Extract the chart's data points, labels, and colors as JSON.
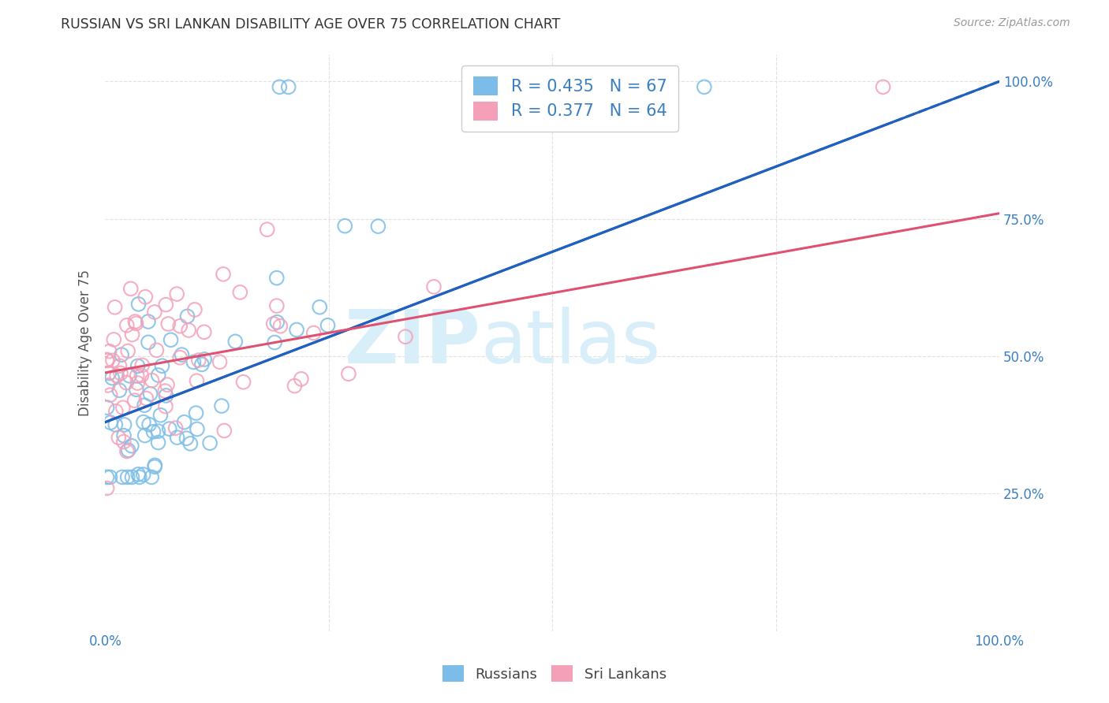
{
  "title": "RUSSIAN VS SRI LANKAN DISABILITY AGE OVER 75 CORRELATION CHART",
  "source": "Source: ZipAtlas.com",
  "ylabel": "Disability Age Over 75",
  "russian_R": 0.435,
  "russian_N": 67,
  "srilankan_R": 0.377,
  "srilankan_N": 64,
  "russian_color": "#7bbde8",
  "srilankan_color": "#f4a0b8",
  "trend_russian_color": "#2060c0",
  "trend_srilankan_color": "#e05070",
  "watermark_color": "#d8eef8",
  "axis_label_color": "#3a7fc1",
  "legend_text_color": "#3a7fc1",
  "background_color": "#ffffff",
  "grid_color": "#e0e0e0",
  "trend_russian_intercept": 0.38,
  "trend_russian_slope": 0.62,
  "trend_srilankan_intercept": 0.47,
  "trend_srilankan_slope": 0.29
}
